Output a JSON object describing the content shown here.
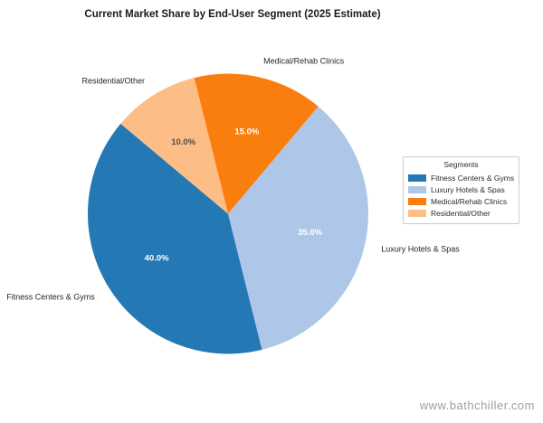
{
  "title": "Current Market Share by End-User Segment (2025 Estimate)",
  "watermark": "www.bathchiller.com",
  "chart_data": {
    "type": "pie",
    "title": "Current Market Share by End-User Segment (2025 Estimate)",
    "legend_title": "Segments",
    "legend_position": "right",
    "start_angle_deg": 140,
    "direction": "counterclockwise",
    "background": "#ffffff",
    "label_color": "#262626",
    "slices": [
      {
        "label": "Fitness Centers & Gyms",
        "value": 40.0,
        "pct_label": "40.0%",
        "color": "#2478b4",
        "pct_label_color": "#ffffff"
      },
      {
        "label": "Luxury Hotels & Spas",
        "value": 35.0,
        "pct_label": "35.0%",
        "color": "#aec7e8",
        "pct_label_color": "#ffffff"
      },
      {
        "label": "Medical/Rehab Clinics",
        "value": 15.0,
        "pct_label": "15.0%",
        "color": "#fa7e0e",
        "pct_label_color": "#ffffff"
      },
      {
        "label": "Residential/Other",
        "value": 10.0,
        "pct_label": "10.0%",
        "color": "#fcbe86",
        "pct_label_color": "#4d4d4d"
      }
    ]
  }
}
